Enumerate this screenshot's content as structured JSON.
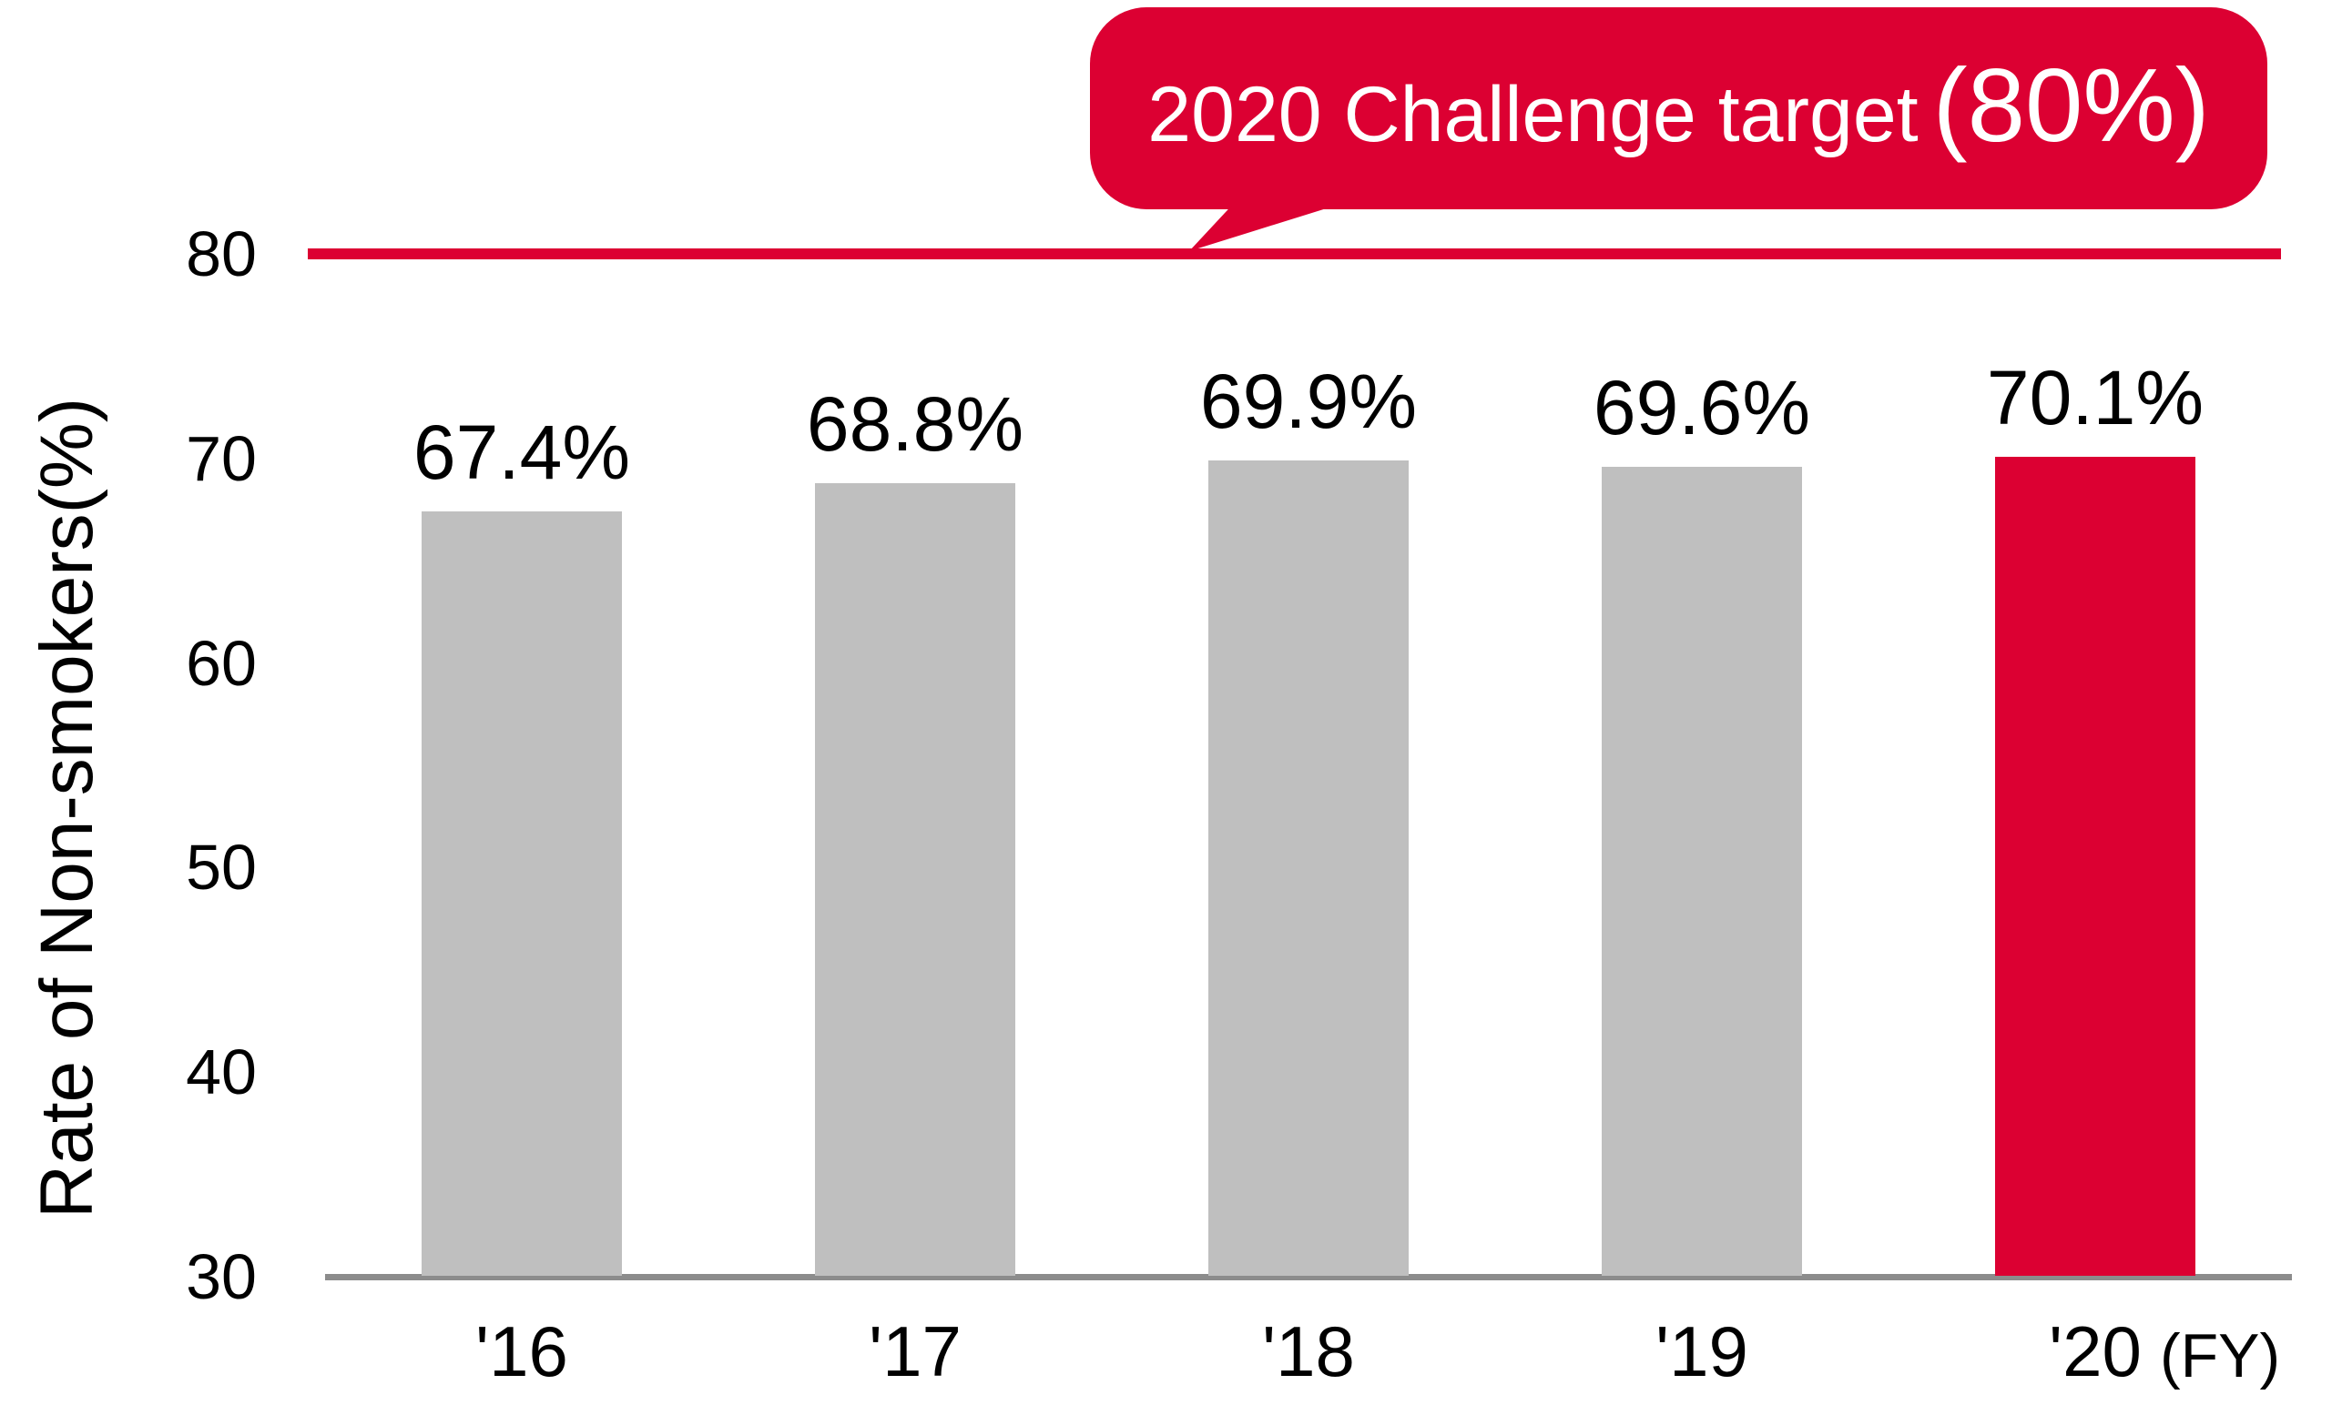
{
  "chart_data": {
    "type": "bar",
    "title": "2020 Challenge target (80%)",
    "categories": [
      "'16",
      "'17",
      "'18",
      "'19",
      "'20"
    ],
    "values": [
      67.4,
      68.8,
      69.9,
      69.6,
      70.1
    ],
    "value_labels": [
      "67.4%",
      "68.8%",
      "69.9%",
      "69.6%",
      "70.1%"
    ],
    "ylabel": "Rate of Non-smokers(%)",
    "xlabel": "(FY)",
    "ylim": [
      30,
      80
    ],
    "yticks": [
      80,
      70,
      60,
      50,
      40,
      30
    ],
    "grid": false,
    "legend": false,
    "highlight_index": 4,
    "target_line": {
      "value": 80,
      "label_main": "2020 Challenge target",
      "label_value": "(80%)"
    },
    "colors": {
      "bar": "#BFBFBF",
      "highlight_bar": "#DC0032",
      "target_line": "#DC0032",
      "callout_bg": "#DC0032",
      "callout_text": "#FFFFFF",
      "axis": "#8C8C8C",
      "text": "#000000"
    }
  }
}
